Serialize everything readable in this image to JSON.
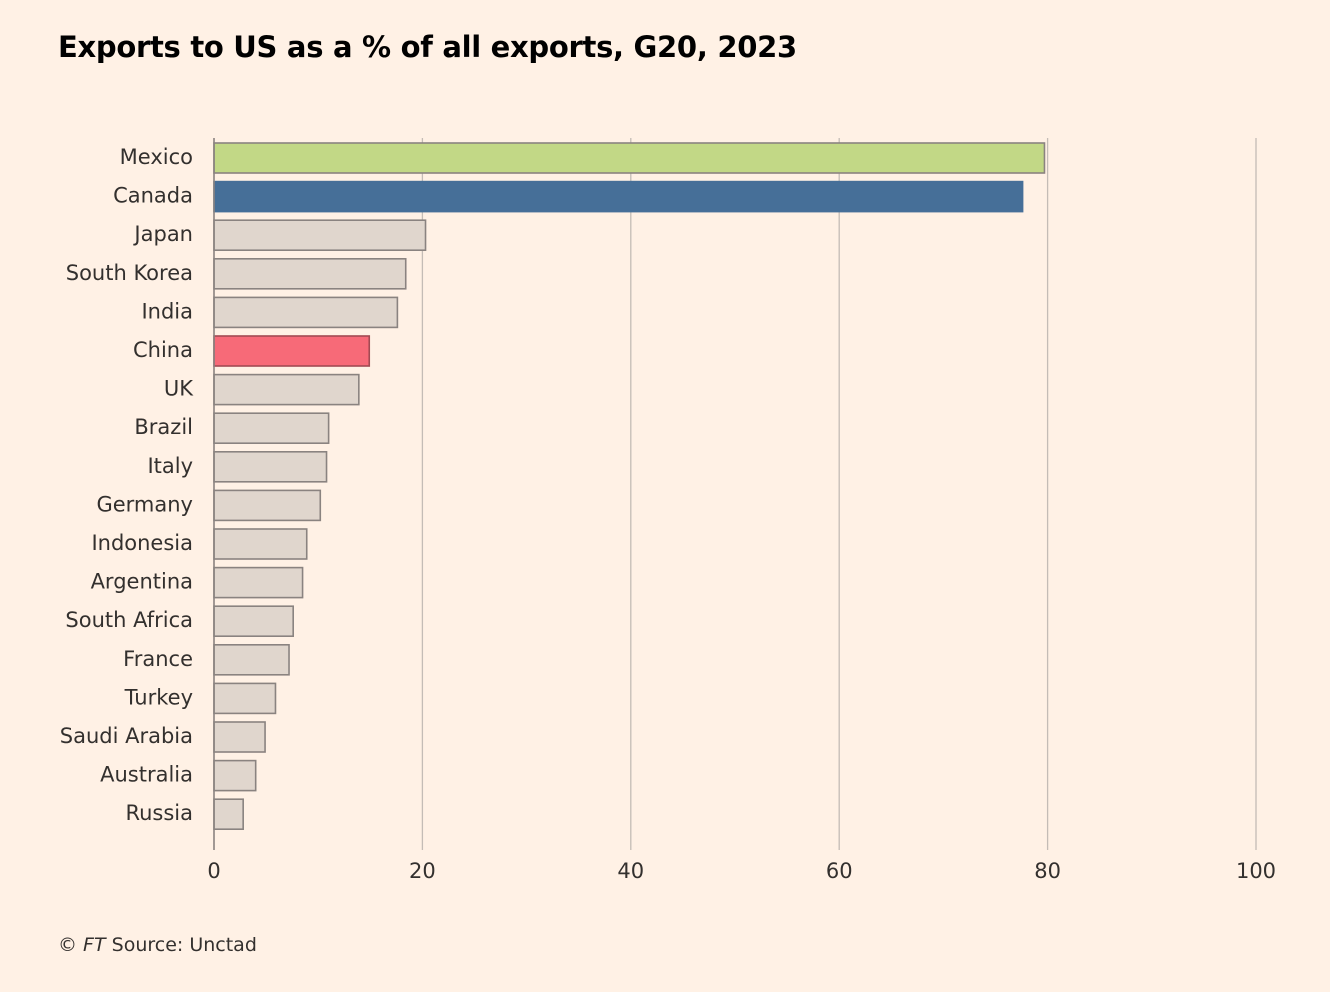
{
  "title": "Exports to US as a % of all exports, G20, 2023",
  "footer": {
    "copyright": "©",
    "brand": "FT",
    "source": "Source: Unctad"
  },
  "colors": {
    "background": "#fff1e5",
    "default_bar": "#e0d6cd",
    "default_stroke": "#8a8380",
    "grid": "#c4bcb6",
    "axis": "#8a8380"
  },
  "chart_data": {
    "type": "bar",
    "orientation": "horizontal",
    "title": "Exports to US as a % of all exports, G20, 2023",
    "xlabel": "",
    "ylabel": "",
    "xlim": [
      0,
      100
    ],
    "ticks": [
      0,
      20,
      40,
      60,
      80,
      100
    ],
    "grid": true,
    "categories": [
      "Mexico",
      "Canada",
      "Japan",
      "South Korea",
      "India",
      "China",
      "UK",
      "Brazil",
      "Italy",
      "Germany",
      "Indonesia",
      "Argentina",
      "South Africa",
      "France",
      "Turkey",
      "Saudi Arabia",
      "Australia",
      "Russia"
    ],
    "values": [
      79.7,
      77.6,
      20.3,
      18.4,
      17.6,
      14.9,
      13.9,
      11.0,
      10.8,
      10.2,
      8.9,
      8.5,
      7.6,
      7.2,
      5.9,
      4.9,
      4.0,
      2.8
    ],
    "highlights": {
      "Mexico": {
        "fill": "#c2d886",
        "stroke": "#8a8380"
      },
      "Canada": {
        "fill": "#466f98",
        "stroke": "#466f98"
      },
      "China": {
        "fill": "#f76a78",
        "stroke": "#a24a52"
      }
    }
  }
}
